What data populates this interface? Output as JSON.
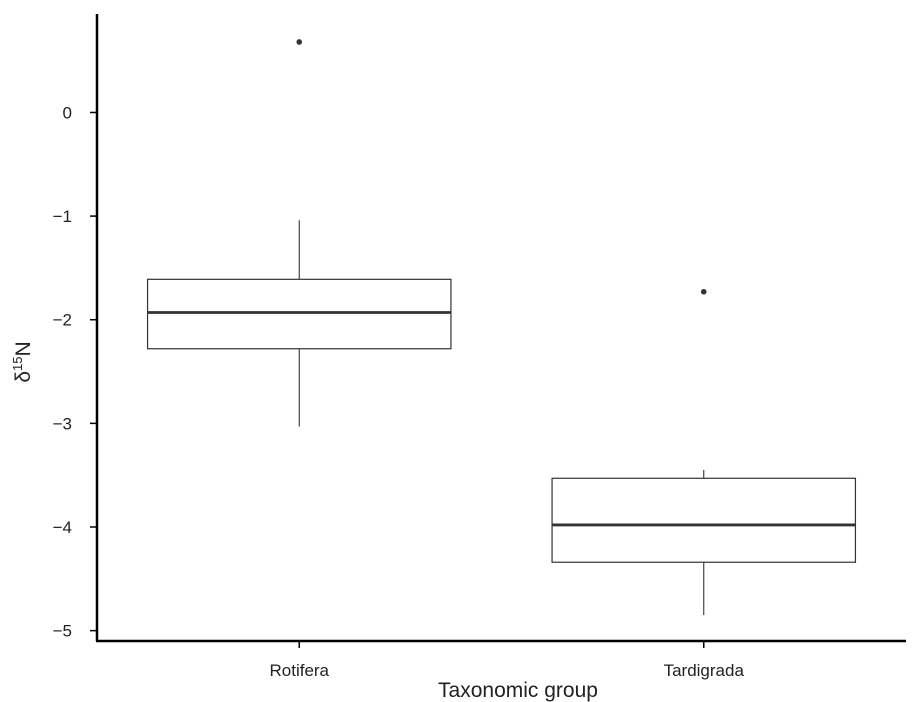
{
  "chart_data": {
    "type": "boxplot",
    "title": "",
    "xlabel": "Taxonomic group",
    "ylabel": "δ15N",
    "ylabel_parts": {
      "base": "δ",
      "sup": "15",
      "tail": "N"
    },
    "ylim": [
      -5.1,
      0.95
    ],
    "yticks": [
      0,
      -1,
      -2,
      -3,
      -4,
      -5
    ],
    "ytick_labels": [
      "0",
      "−1",
      "−2",
      "−3",
      "−4",
      "−5"
    ],
    "grid": false,
    "categories": [
      "Rotifera",
      "Tardigrada"
    ],
    "boxes": [
      {
        "name": "Rotifera",
        "whisker_low": -3.03,
        "q1": -2.28,
        "median": -1.93,
        "q3": -1.61,
        "whisker_high": -1.04,
        "outliers": [
          0.68
        ]
      },
      {
        "name": "Tardigrada",
        "whisker_low": -4.85,
        "q1": -4.34,
        "median": -3.98,
        "q3": -3.53,
        "whisker_high": -3.45,
        "outliers": [
          -1.73
        ]
      }
    ],
    "colors": {
      "box_fill": "#ffffff",
      "box_stroke": "#333333",
      "axis": "#000000"
    }
  }
}
